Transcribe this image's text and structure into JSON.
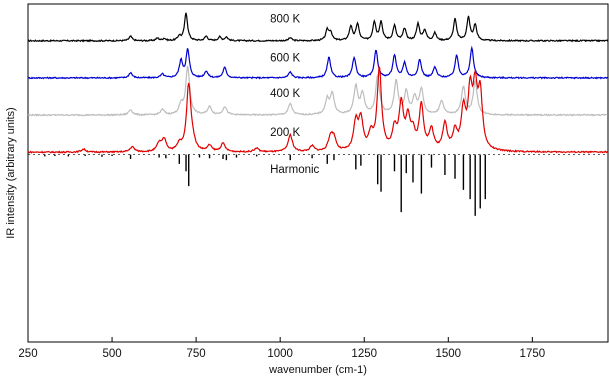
{
  "chart_data": {
    "type": "line",
    "xlabel": "wavenumber (cm-1)",
    "ylabel": "IR intensity (arbitrary units)",
    "xlim": [
      250,
      1975
    ],
    "xticks": [
      250,
      500,
      750,
      1000,
      1250,
      1500,
      1750
    ],
    "ylim": [
      -5.1,
      4.0
    ],
    "grid": false,
    "series": [
      {
        "name": "800 K",
        "color": "#000000",
        "offset": 3.0,
        "peaks": [
          [
            555,
            0.12
          ],
          [
            635,
            0.07
          ],
          [
            655,
            0.06
          ],
          [
            700,
            0.12
          ],
          [
            720,
            0.75
          ],
          [
            780,
            0.12
          ],
          [
            820,
            0.1
          ],
          [
            840,
            0.1
          ],
          [
            1030,
            0.08
          ],
          [
            1140,
            0.28
          ],
          [
            1150,
            0.22
          ],
          [
            1210,
            0.38
          ],
          [
            1230,
            0.45
          ],
          [
            1280,
            0.5
          ],
          [
            1300,
            0.5
          ],
          [
            1340,
            0.4
          ],
          [
            1370,
            0.32
          ],
          [
            1410,
            0.45
          ],
          [
            1430,
            0.28
          ],
          [
            1460,
            0.2
          ],
          [
            1520,
            0.58
          ],
          [
            1560,
            0.62
          ],
          [
            1580,
            0.42
          ]
        ]
      },
      {
        "name": "600 K",
        "color": "#0000d0",
        "offset": 2.0,
        "peaks": [
          [
            555,
            0.14
          ],
          [
            650,
            0.1
          ],
          [
            705,
            0.45
          ],
          [
            725,
            0.75
          ],
          [
            780,
            0.18
          ],
          [
            835,
            0.28
          ],
          [
            1030,
            0.16
          ],
          [
            1145,
            0.55
          ],
          [
            1220,
            0.55
          ],
          [
            1285,
            0.75
          ],
          [
            1340,
            0.6
          ],
          [
            1370,
            0.4
          ],
          [
            1415,
            0.48
          ],
          [
            1460,
            0.28
          ],
          [
            1525,
            0.6
          ],
          [
            1570,
            0.8
          ]
        ]
      },
      {
        "name": "400 K",
        "color": "#bdbdbd",
        "offset": 1.0,
        "peaks": [
          [
            555,
            0.14
          ],
          [
            650,
            0.14
          ],
          [
            705,
            0.25
          ],
          [
            725,
            1.3
          ],
          [
            790,
            0.22
          ],
          [
            835,
            0.22
          ],
          [
            1030,
            0.3
          ],
          [
            1140,
            0.4
          ],
          [
            1155,
            0.55
          ],
          [
            1225,
            0.75
          ],
          [
            1245,
            0.55
          ],
          [
            1290,
            1.05
          ],
          [
            1345,
            0.9
          ],
          [
            1375,
            0.6
          ],
          [
            1400,
            0.45
          ],
          [
            1420,
            0.68
          ],
          [
            1480,
            0.38
          ],
          [
            1545,
            0.75
          ],
          [
            1580,
            0.9
          ]
        ]
      },
      {
        "name": "200 K",
        "color": "#e00000",
        "offset": 0.0,
        "peaks": [
          [
            415,
            0.08
          ],
          [
            560,
            0.14
          ],
          [
            640,
            0.22
          ],
          [
            655,
            0.32
          ],
          [
            700,
            0.18
          ],
          [
            728,
            1.8
          ],
          [
            740,
            0.18
          ],
          [
            790,
            0.16
          ],
          [
            830,
            0.22
          ],
          [
            930,
            0.1
          ],
          [
            1030,
            0.45
          ],
          [
            1095,
            0.15
          ],
          [
            1150,
            0.38
          ],
          [
            1160,
            0.32
          ],
          [
            1225,
            0.75
          ],
          [
            1240,
            0.82
          ],
          [
            1270,
            0.42
          ],
          [
            1295,
            2.2
          ],
          [
            1340,
            0.55
          ],
          [
            1360,
            1.2
          ],
          [
            1380,
            0.82
          ],
          [
            1395,
            0.42
          ],
          [
            1420,
            1.2
          ],
          [
            1450,
            0.55
          ],
          [
            1490,
            0.72
          ],
          [
            1520,
            0.48
          ],
          [
            1545,
            1.05
          ],
          [
            1565,
            1.45
          ],
          [
            1580,
            1.5
          ],
          [
            1595,
            1.45
          ]
        ]
      }
    ],
    "harmonic": {
      "name": "Harmonic",
      "color": "#000000",
      "sticks": [
        [
          300,
          0.05
        ],
        [
          330,
          0.04
        ],
        [
          370,
          0.05
        ],
        [
          420,
          0.04
        ],
        [
          470,
          0.06
        ],
        [
          500,
          0.04
        ],
        [
          555,
          0.12
        ],
        [
          640,
          0.08
        ],
        [
          660,
          0.1
        ],
        [
          700,
          0.25
        ],
        [
          720,
          0.45
        ],
        [
          728,
          0.85
        ],
        [
          760,
          0.08
        ],
        [
          790,
          0.1
        ],
        [
          830,
          0.12
        ],
        [
          840,
          0.15
        ],
        [
          870,
          0.08
        ],
        [
          930,
          0.05
        ],
        [
          1030,
          0.15
        ],
        [
          1095,
          0.1
        ],
        [
          1140,
          0.25
        ],
        [
          1160,
          0.15
        ],
        [
          1225,
          0.4
        ],
        [
          1240,
          0.3
        ],
        [
          1290,
          0.8
        ],
        [
          1300,
          1.0
        ],
        [
          1340,
          0.45
        ],
        [
          1360,
          1.55
        ],
        [
          1375,
          0.5
        ],
        [
          1395,
          0.75
        ],
        [
          1420,
          1.05
        ],
        [
          1450,
          0.35
        ],
        [
          1490,
          0.55
        ],
        [
          1520,
          0.65
        ],
        [
          1545,
          0.95
        ],
        [
          1565,
          1.2
        ],
        [
          1580,
          1.65
        ],
        [
          1595,
          1.45
        ],
        [
          1610,
          1.2
        ]
      ]
    },
    "labels": [
      "800 K",
      "600 K",
      "400 K",
      "200 K",
      "Harmonic"
    ]
  }
}
